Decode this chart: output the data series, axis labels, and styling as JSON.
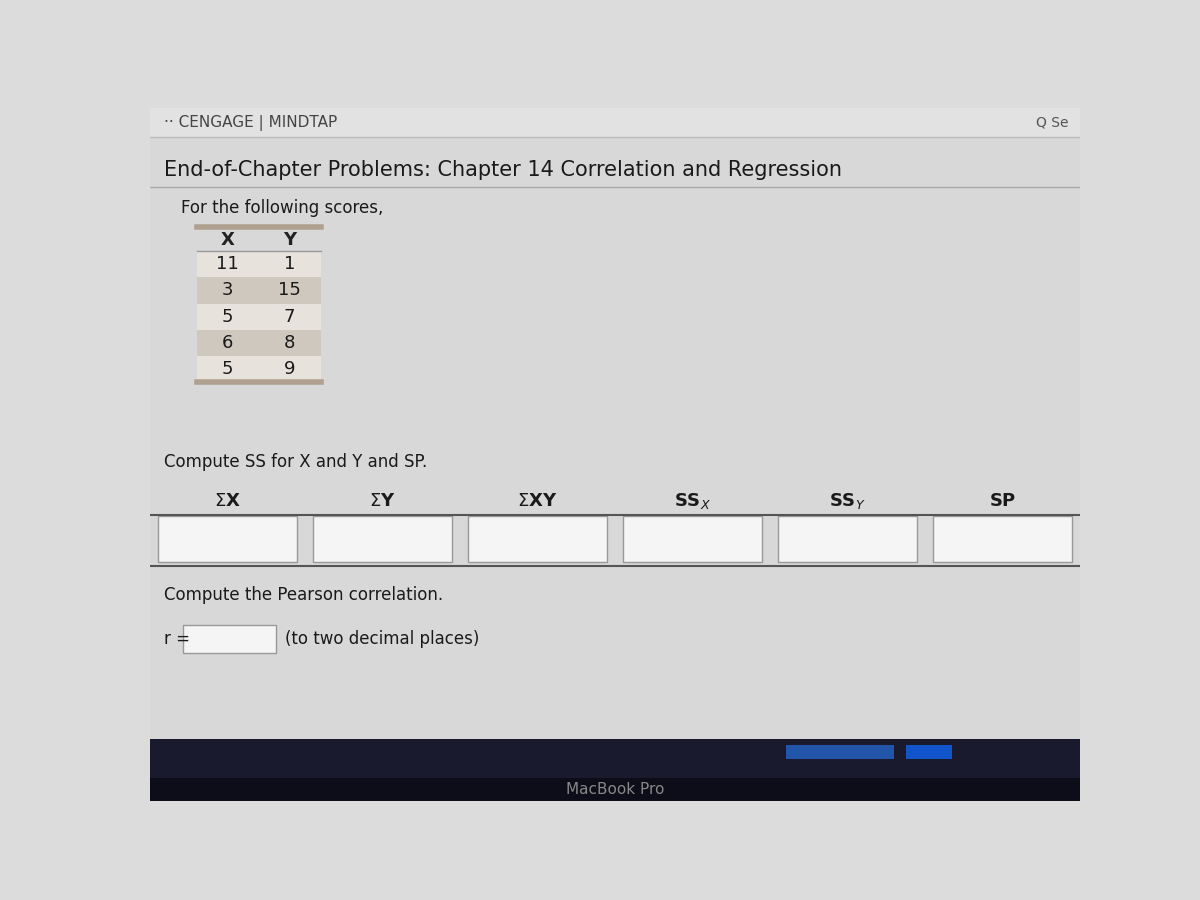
{
  "header_logo": "·· CENGAGE | MINDTAP",
  "page_title": "End-of-Chapter Problems: Chapter 14 Correlation and Regression",
  "subtitle": "For the following scores,",
  "table_headers": [
    "X",
    "Y"
  ],
  "table_data": [
    [
      11,
      1
    ],
    [
      3,
      15
    ],
    [
      5,
      7
    ],
    [
      6,
      8
    ],
    [
      5,
      9
    ]
  ],
  "instruction1": "Compute SS for X and Y and SP.",
  "instruction2": "Compute the Pearson correlation.",
  "r_label": "r =",
  "r_suffix": "(to two decimal places)",
  "macbook_text": "MacBook Pro",
  "bg_color_top": "#dcdcdc",
  "bg_color_bottom": "#c8c8c8",
  "header_bg": "#e0e0e0",
  "header_line_color": "#bbbbbb",
  "table_row_even_bg": "#cfc8be",
  "table_row_odd_bg": "#e8e2dc",
  "table_top_border_color": "#b0a090",
  "table_bottom_border_color": "#b0a090",
  "input_box_color": "#f5f5f5",
  "input_box_border": "#999999",
  "line_color": "#444444",
  "text_color": "#1a1a1a",
  "bottom_dark_color": "#1a1a2e",
  "bottom_black_color": "#111111",
  "bottom_accent1": "#2255aa",
  "bottom_accent2": "#1144cc",
  "macbook_text_color": "#888888",
  "search_color": "#555555"
}
